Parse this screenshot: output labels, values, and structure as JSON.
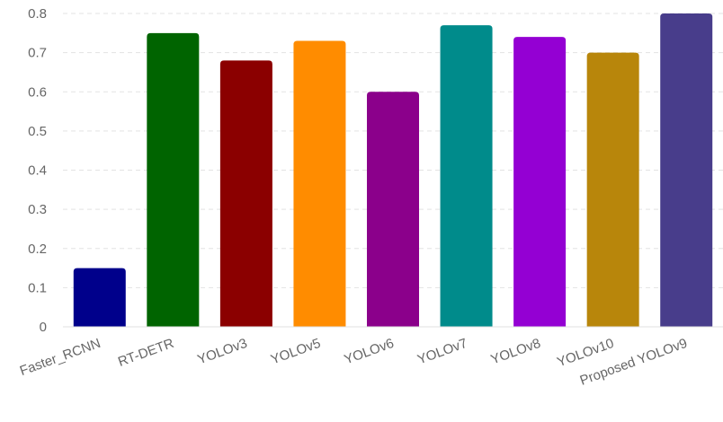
{
  "chart_data": {
    "type": "bar",
    "title": "",
    "xlabel": "",
    "ylabel": "",
    "categories": [
      "Faster_RCNN",
      "RT-DETR",
      "YOLOv3",
      "YOLOv5",
      "YOLOv6",
      "YOLOv7",
      "YOLOv8",
      "YOLOv10",
      "Proposed YOLOv9"
    ],
    "values": [
      0.15,
      0.75,
      0.68,
      0.73,
      0.6,
      0.77,
      0.74,
      0.7,
      0.8
    ],
    "colors": [
      "#00008b",
      "#006400",
      "#8b0000",
      "#ff8c00",
      "#8b008b",
      "#008b8b",
      "#9400d3",
      "#b8860b",
      "#483d8b"
    ],
    "ylim": [
      0,
      0.8
    ],
    "yticks": [
      "0",
      "0.1",
      "0.2",
      "0.3",
      "0.4",
      "0.5",
      "0.6",
      "0.7",
      "0.8"
    ],
    "grid": true,
    "legend": "none"
  }
}
